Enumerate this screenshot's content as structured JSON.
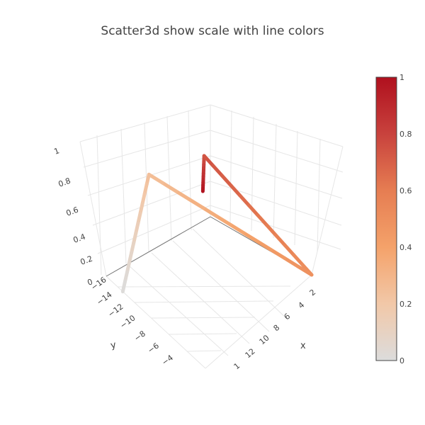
{
  "chart_data": {
    "type": "scatter3d-line",
    "title": "Scatter3d show scale with line colors",
    "axes": {
      "x": {
        "label": "x",
        "ticks": [
          "2",
          "4",
          "6",
          "8",
          "10",
          "12",
          "1"
        ]
      },
      "y": {
        "label": "y",
        "ticks": [
          "−16",
          "−14",
          "−12",
          "−10",
          "−8",
          "−6",
          "−4"
        ]
      },
      "z": {
        "ticks": [
          "0",
          "0.2",
          "0.4",
          "0.6",
          "0.8",
          "1"
        ]
      }
    },
    "line": {
      "points": [
        {
          "x": 11,
          "y": -16,
          "z": 0,
          "color_value": 1
        },
        {
          "x": 6,
          "y": -10,
          "z": 1,
          "color_value": 0.75
        },
        {
          "x": 12,
          "y": -4,
          "z": 0,
          "color_value": 0.5
        },
        {
          "x": 2,
          "y": -12,
          "z": 1,
          "color_value": 0.25
        },
        {
          "x": 1,
          "y": -14,
          "z": 0,
          "color_value": 0
        }
      ],
      "colorscale": "Reds"
    },
    "colorbar": {
      "range": [
        0,
        1
      ],
      "ticks": [
        "0",
        "0.2",
        "0.4",
        "0.6",
        "0.8",
        "1"
      ],
      "colors": [
        "#dcdcdc",
        "#f2c8a8",
        "#f4a26a",
        "#e67d52",
        "#c8423d",
        "#b0101e"
      ]
    }
  }
}
